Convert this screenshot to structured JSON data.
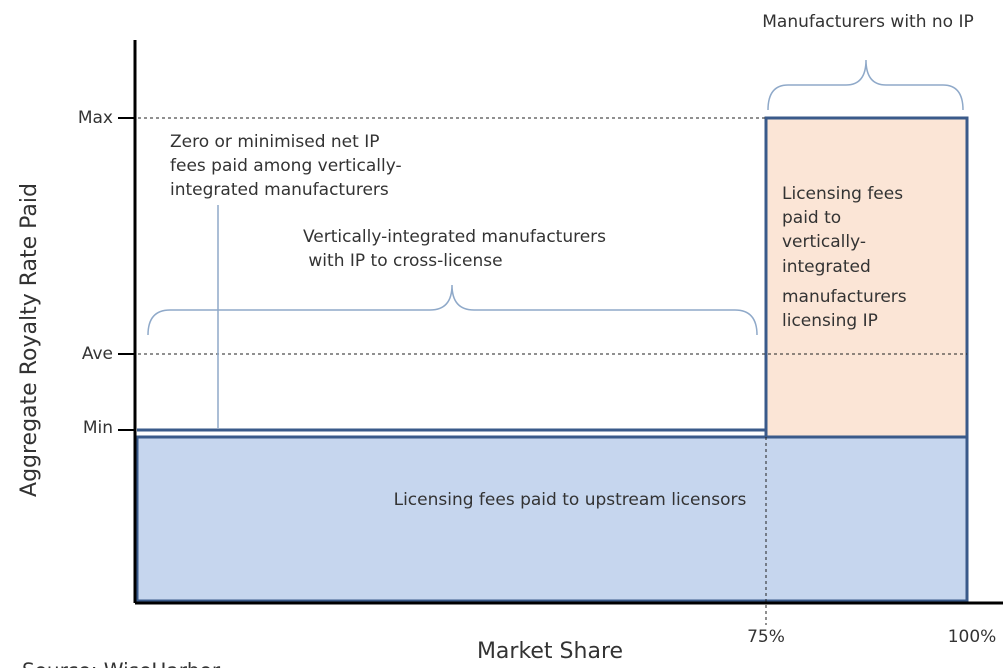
{
  "y_axis_label": "Aggregate Royalty Rate  Paid",
  "x_axis_label": "Market Share",
  "y_levels": [
    "Max",
    "Ave",
    "Min"
  ],
  "x_ticks": [
    "75%",
    "100%"
  ],
  "annotations": {
    "no_ip": "Manufacturers with no IP",
    "zero_fees": [
      "Zero or minimised net IP",
      "fees paid among vertically-",
      "integrated manufacturers"
    ],
    "cross_license": [
      "Vertically-integrated manufacturers",
      " with IP to cross-license"
    ],
    "licensing_vertical": [
      "Licensing fees",
      "paid to",
      "vertically-",
      "integrated",
      "manufacturers",
      "licensing IP"
    ],
    "upstream": "Licensing fees paid to upstream licensors"
  },
  "source": "Source: WiseHarbor"
}
